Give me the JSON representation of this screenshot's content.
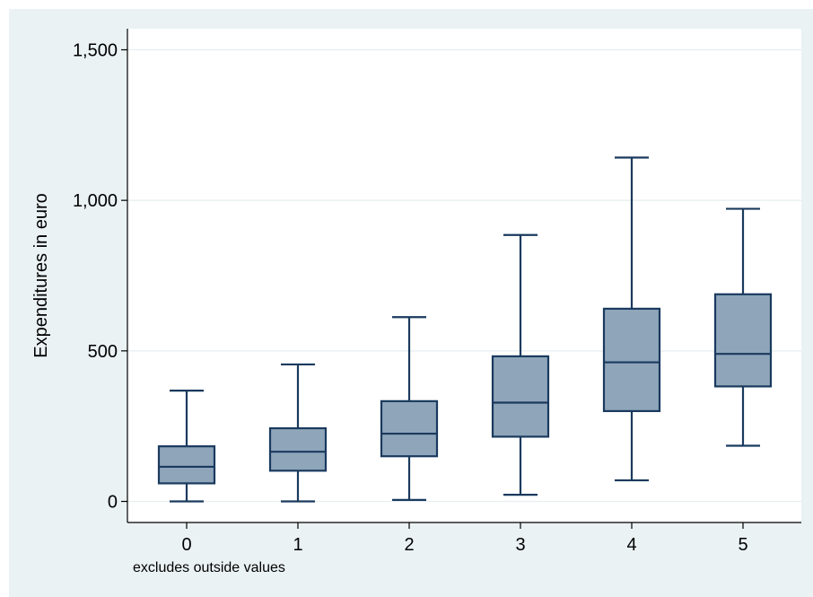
{
  "chart_data": {
    "type": "box",
    "ylabel": "Expenditures in euro",
    "xlabel": "",
    "note": "excludes outside values",
    "ylim": [
      -70,
      1570
    ],
    "y_ticks": [
      0,
      500,
      1000,
      1500
    ],
    "y_tick_labels": [
      "0",
      "500",
      "1,000",
      "1,500"
    ],
    "grid": true,
    "categories": [
      "0",
      "1",
      "2",
      "3",
      "4",
      "5"
    ],
    "boxes": [
      {
        "category": "0",
        "whisker_low": 0,
        "q1": 60,
        "median": 115,
        "q3": 183,
        "whisker_high": 368
      },
      {
        "category": "1",
        "whisker_low": 0,
        "q1": 102,
        "median": 165,
        "q3": 243,
        "whisker_high": 455
      },
      {
        "category": "2",
        "whisker_low": 5,
        "q1": 150,
        "median": 225,
        "q3": 333,
        "whisker_high": 612
      },
      {
        "category": "3",
        "whisker_low": 22,
        "q1": 215,
        "median": 328,
        "q3": 482,
        "whisker_high": 885
      },
      {
        "category": "4",
        "whisker_low": 70,
        "q1": 300,
        "median": 462,
        "q3": 640,
        "whisker_high": 1142
      },
      {
        "category": "5",
        "whisker_low": 185,
        "q1": 382,
        "median": 490,
        "q3": 688,
        "whisker_high": 972
      }
    ],
    "colors": {
      "background": "#eaf2f3",
      "plot_area": "#ffffff",
      "box_fill": "#8fa5ba",
      "box_stroke": "#1a3a5e",
      "grid": "#e6eef0",
      "axis": "#000000"
    }
  }
}
